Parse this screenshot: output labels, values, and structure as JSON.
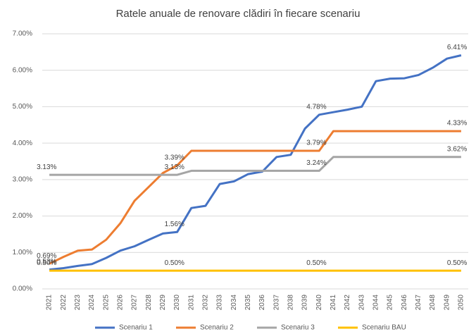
{
  "chart_data": {
    "type": "line",
    "title": "Ratele anuale de renovare clădiri în fiecare scenariu",
    "categories": [
      "2021",
      "2022",
      "2023",
      "2024",
      "2025",
      "2026",
      "2027",
      "2028",
      "2029",
      "2030",
      "2031",
      "2032",
      "2033",
      "2034",
      "2035",
      "2036",
      "2037",
      "2038",
      "2039",
      "2040",
      "2041",
      "2042",
      "2043",
      "2044",
      "2045",
      "2046",
      "2047",
      "2048",
      "2049",
      "2050"
    ],
    "ylim": [
      0,
      7
    ],
    "yticks": [
      {
        "value": 0,
        "label": "0.00%"
      },
      {
        "value": 1,
        "label": "1.00%"
      },
      {
        "value": 2,
        "label": "2.00%"
      },
      {
        "value": 3,
        "label": "3.00%"
      },
      {
        "value": 4,
        "label": "4.00%"
      },
      {
        "value": 5,
        "label": "5.00%"
      },
      {
        "value": 6,
        "label": "6.00%"
      },
      {
        "value": 7,
        "label": "7.00%"
      }
    ],
    "grid": true,
    "legend": "bottom",
    "series": [
      {
        "name": "Scenariu 1",
        "color": "#4472c4",
        "values": [
          0.53,
          0.57,
          0.63,
          0.68,
          0.85,
          1.05,
          1.17,
          1.35,
          1.52,
          1.56,
          2.22,
          2.28,
          2.88,
          2.95,
          3.15,
          3.22,
          3.62,
          3.68,
          4.4,
          4.78,
          4.85,
          4.92,
          5.0,
          5.7,
          5.77,
          5.78,
          5.87,
          6.07,
          6.32,
          6.41
        ],
        "value_labels": [
          "0.53%",
          null,
          null,
          null,
          null,
          null,
          null,
          null,
          null,
          "1.56%",
          null,
          null,
          null,
          null,
          null,
          null,
          null,
          null,
          null,
          "4.78%",
          null,
          null,
          null,
          null,
          null,
          null,
          null,
          null,
          null,
          "6.41%"
        ]
      },
      {
        "name": "Scenariu 2",
        "color": "#ed7d31",
        "values": [
          0.69,
          0.88,
          1.05,
          1.08,
          1.35,
          1.8,
          2.42,
          2.8,
          3.18,
          3.39,
          3.79,
          3.79,
          3.79,
          3.79,
          3.79,
          3.79,
          3.79,
          3.79,
          3.79,
          3.79,
          4.33,
          4.33,
          4.33,
          4.33,
          4.33,
          4.33,
          4.33,
          4.33,
          4.33,
          4.33
        ],
        "value_labels": [
          "0.69%",
          null,
          null,
          null,
          null,
          null,
          null,
          null,
          null,
          "3.39%",
          null,
          null,
          null,
          null,
          null,
          null,
          null,
          null,
          null,
          "3.79%",
          null,
          null,
          null,
          null,
          null,
          null,
          null,
          null,
          null,
          "4.33%"
        ]
      },
      {
        "name": "Scenariu 3",
        "color": "#a5a5a5",
        "values": [
          3.13,
          3.13,
          3.13,
          3.13,
          3.13,
          3.13,
          3.13,
          3.13,
          3.13,
          3.13,
          3.24,
          3.24,
          3.24,
          3.24,
          3.24,
          3.24,
          3.24,
          3.24,
          3.24,
          3.24,
          3.62,
          3.62,
          3.62,
          3.62,
          3.62,
          3.62,
          3.62,
          3.62,
          3.62,
          3.62
        ],
        "value_labels": [
          "3.13%",
          null,
          null,
          null,
          null,
          null,
          null,
          null,
          null,
          "3.13%",
          null,
          null,
          null,
          null,
          null,
          null,
          null,
          null,
          null,
          "3.24%",
          null,
          null,
          null,
          null,
          null,
          null,
          null,
          null,
          null,
          "3.62%"
        ]
      },
      {
        "name": "Scenariu BAU",
        "color": "#ffc000",
        "values": [
          0.5,
          0.5,
          0.5,
          0.5,
          0.5,
          0.5,
          0.5,
          0.5,
          0.5,
          0.5,
          0.5,
          0.5,
          0.5,
          0.5,
          0.5,
          0.5,
          0.5,
          0.5,
          0.5,
          0.5,
          0.5,
          0.5,
          0.5,
          0.5,
          0.5,
          0.5,
          0.5,
          0.5,
          0.5,
          0.5
        ],
        "value_labels": [
          "0.50%",
          null,
          null,
          null,
          null,
          null,
          null,
          null,
          null,
          "0.50%",
          null,
          null,
          null,
          null,
          null,
          null,
          null,
          null,
          null,
          "0.50%",
          null,
          null,
          null,
          null,
          null,
          null,
          null,
          null,
          null,
          "0.50%"
        ]
      }
    ]
  }
}
